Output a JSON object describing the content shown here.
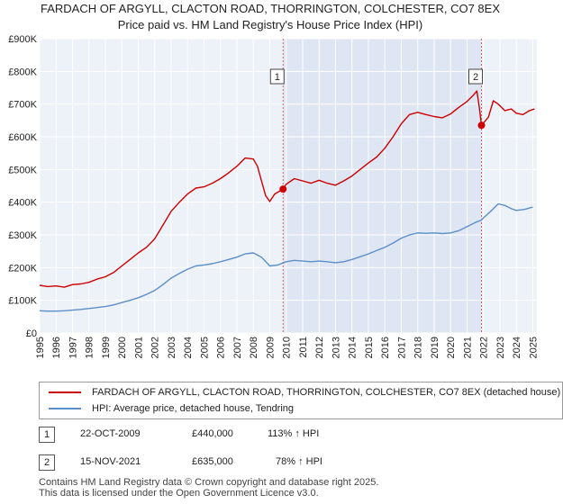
{
  "chart_data": {
    "type": "line",
    "title": "FARDACH OF ARGYLL, CLACTON ROAD, THORRINGTON, COLCHESTER, CO7 8EX",
    "subtitle": "Price paid vs. HM Land Registry's House Price Index (HPI)",
    "xlim": [
      1995,
      2025.25
    ],
    "ylim": [
      0,
      900000
    ],
    "x_ticks": [
      "1995",
      "1996",
      "1997",
      "1998",
      "1999",
      "2000",
      "2001",
      "2002",
      "2003",
      "2004",
      "2005",
      "2006",
      "2007",
      "2008",
      "2009",
      "2010",
      "2011",
      "2012",
      "2013",
      "2014",
      "2015",
      "2016",
      "2017",
      "2018",
      "2019",
      "2020",
      "2021",
      "2022",
      "2023",
      "2024",
      "2025"
    ],
    "y_ticks": [
      {
        "value": 0,
        "label": "£0"
      },
      {
        "value": 100000,
        "label": "£100K"
      },
      {
        "value": 200000,
        "label": "£200K"
      },
      {
        "value": 300000,
        "label": "£300K"
      },
      {
        "value": 400000,
        "label": "£400K"
      },
      {
        "value": 500000,
        "label": "£500K"
      },
      {
        "value": 600000,
        "label": "£600K"
      },
      {
        "value": 700000,
        "label": "£700K"
      },
      {
        "value": 800000,
        "label": "£800K"
      },
      {
        "value": 900000,
        "label": "£900K"
      }
    ],
    "grid": true,
    "series": [
      {
        "name": "FARDACH OF ARGYLL, CLACTON ROAD, THORRINGTON, COLCHESTER, CO7 8EX (detached house)",
        "color": "#cc0000",
        "points": [
          [
            1995,
            146000
          ],
          [
            1995.5,
            142000
          ],
          [
            1996,
            144000
          ],
          [
            1996.5,
            140000
          ],
          [
            1997,
            148000
          ],
          [
            1997.5,
            150000
          ],
          [
            1998,
            155000
          ],
          [
            1998.5,
            165000
          ],
          [
            1999,
            172000
          ],
          [
            1999.5,
            185000
          ],
          [
            2000,
            205000
          ],
          [
            2000.5,
            225000
          ],
          [
            2001,
            245000
          ],
          [
            2001.5,
            262000
          ],
          [
            2002,
            288000
          ],
          [
            2002.5,
            330000
          ],
          [
            2003,
            372000
          ],
          [
            2003.5,
            400000
          ],
          [
            2004,
            425000
          ],
          [
            2004.5,
            443000
          ],
          [
            2005,
            447000
          ],
          [
            2005.5,
            458000
          ],
          [
            2006,
            472000
          ],
          [
            2006.5,
            490000
          ],
          [
            2007,
            510000
          ],
          [
            2007.5,
            535000
          ],
          [
            2008,
            532000
          ],
          [
            2008.25,
            510000
          ],
          [
            2008.5,
            465000
          ],
          [
            2008.75,
            420000
          ],
          [
            2009,
            402000
          ],
          [
            2009.3,
            425000
          ],
          [
            2009.81,
            440000
          ],
          [
            2010,
            455000
          ],
          [
            2010.5,
            472000
          ],
          [
            2011,
            465000
          ],
          [
            2011.5,
            458000
          ],
          [
            2012,
            467000
          ],
          [
            2012.5,
            458000
          ],
          [
            2013,
            452000
          ],
          [
            2013.5,
            465000
          ],
          [
            2014,
            480000
          ],
          [
            2014.5,
            500000
          ],
          [
            2015,
            520000
          ],
          [
            2015.5,
            538000
          ],
          [
            2016,
            565000
          ],
          [
            2016.5,
            600000
          ],
          [
            2017,
            640000
          ],
          [
            2017.5,
            668000
          ],
          [
            2018,
            675000
          ],
          [
            2018.5,
            668000
          ],
          [
            2019,
            662000
          ],
          [
            2019.5,
            658000
          ],
          [
            2020,
            670000
          ],
          [
            2020.5,
            690000
          ],
          [
            2021,
            708000
          ],
          [
            2021.4,
            728000
          ],
          [
            2021.6,
            740000
          ],
          [
            2021.75,
            690000
          ],
          [
            2021.88,
            635000
          ],
          [
            2022.1,
            648000
          ],
          [
            2022.3,
            660000
          ],
          [
            2022.6,
            710000
          ],
          [
            2022.9,
            700000
          ],
          [
            2023.3,
            680000
          ],
          [
            2023.7,
            685000
          ],
          [
            2024,
            672000
          ],
          [
            2024.4,
            668000
          ],
          [
            2024.8,
            680000
          ],
          [
            2025.1,
            685000
          ]
        ]
      },
      {
        "name": "HPI: Average price, detached house, Tendring",
        "color": "#5b8fc9",
        "points": [
          [
            1995,
            68000
          ],
          [
            1995.5,
            67000
          ],
          [
            1996,
            67000
          ],
          [
            1996.5,
            68000
          ],
          [
            1997,
            70000
          ],
          [
            1997.5,
            72000
          ],
          [
            1998,
            75000
          ],
          [
            1998.5,
            78000
          ],
          [
            1999,
            81000
          ],
          [
            1999.5,
            86000
          ],
          [
            2000,
            93000
          ],
          [
            2000.5,
            100000
          ],
          [
            2001,
            108000
          ],
          [
            2001.5,
            118000
          ],
          [
            2002,
            130000
          ],
          [
            2002.5,
            148000
          ],
          [
            2003,
            168000
          ],
          [
            2003.5,
            182000
          ],
          [
            2004,
            195000
          ],
          [
            2004.5,
            205000
          ],
          [
            2005,
            208000
          ],
          [
            2005.5,
            212000
          ],
          [
            2006,
            218000
          ],
          [
            2006.5,
            225000
          ],
          [
            2007,
            232000
          ],
          [
            2007.5,
            242000
          ],
          [
            2008,
            245000
          ],
          [
            2008.5,
            232000
          ],
          [
            2009,
            205000
          ],
          [
            2009.5,
            208000
          ],
          [
            2010,
            218000
          ],
          [
            2010.5,
            222000
          ],
          [
            2011,
            220000
          ],
          [
            2011.5,
            218000
          ],
          [
            2012,
            220000
          ],
          [
            2012.5,
            218000
          ],
          [
            2013,
            215000
          ],
          [
            2013.5,
            218000
          ],
          [
            2014,
            225000
          ],
          [
            2014.5,
            233000
          ],
          [
            2015,
            242000
          ],
          [
            2015.5,
            252000
          ],
          [
            2016,
            262000
          ],
          [
            2016.5,
            275000
          ],
          [
            2017,
            290000
          ],
          [
            2017.5,
            300000
          ],
          [
            2018,
            306000
          ],
          [
            2018.5,
            305000
          ],
          [
            2019,
            306000
          ],
          [
            2019.5,
            304000
          ],
          [
            2020,
            306000
          ],
          [
            2020.5,
            313000
          ],
          [
            2021,
            325000
          ],
          [
            2021.5,
            338000
          ],
          [
            2021.88,
            345000
          ],
          [
            2022,
            352000
          ],
          [
            2022.5,
            375000
          ],
          [
            2022.9,
            395000
          ],
          [
            2023.3,
            390000
          ],
          [
            2023.7,
            380000
          ],
          [
            2024,
            375000
          ],
          [
            2024.5,
            378000
          ],
          [
            2025,
            385000
          ]
        ]
      }
    ],
    "sales": [
      {
        "num": "1",
        "year": 2009.81,
        "price": 440000
      },
      {
        "num": "2",
        "year": 2021.88,
        "price": 635000
      }
    ]
  },
  "legend": {
    "property_label": "FARDACH OF ARGYLL, CLACTON ROAD, THORRINGTON, COLCHESTER, CO7 8EX (detached house)",
    "hpi_label": "HPI: Average price, detached house, Tendring"
  },
  "sales_table": [
    {
      "num": "1",
      "date": "22-OCT-2009",
      "price": "£440,000",
      "hpi": "113% ↑ HPI"
    },
    {
      "num": "2",
      "date": "15-NOV-2021",
      "price": "£635,000",
      "hpi": "78% ↑ HPI"
    }
  ],
  "footer": {
    "line1": "Contains HM Land Registry data © Crown copyright and database right 2025.",
    "line2": "This data is licensed under the Open Government Licence v3.0."
  }
}
